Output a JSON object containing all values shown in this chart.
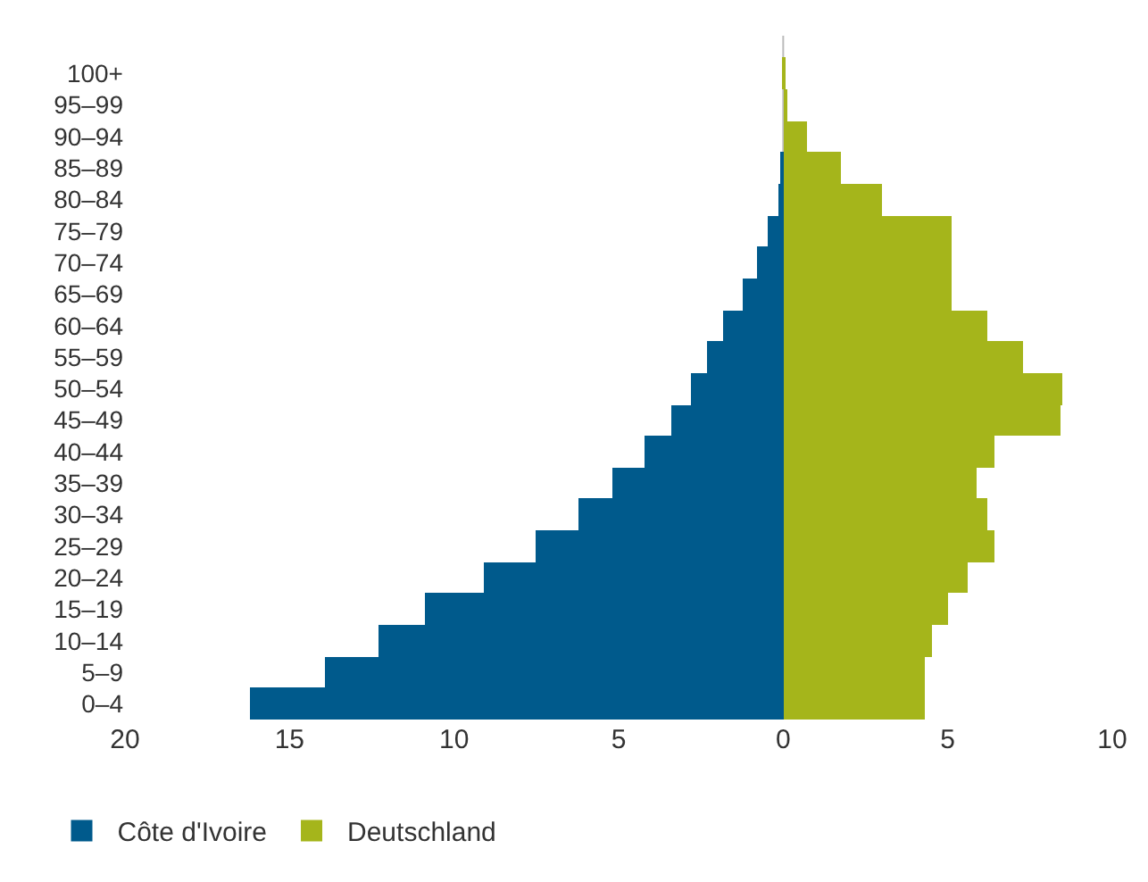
{
  "chart_data": {
    "type": "bar",
    "orientation": "horizontal",
    "categories": [
      "100+",
      "95–99",
      "90–94",
      "85–89",
      "80–84",
      "75–79",
      "70–74",
      "65–69",
      "60–64",
      "55–59",
      "50–54",
      "45–49",
      "40–44",
      "35–39",
      "30–34",
      "25–29",
      "20–24",
      "15–19",
      "10–14",
      "5–9",
      "0–4"
    ],
    "series": [
      {
        "name": "Côte d'Ivoire",
        "color": "#005a8c",
        "values": [
          0,
          0,
          0,
          -0.05,
          -0.15,
          -0.45,
          -0.8,
          -1.25,
          -1.8,
          -2.3,
          -2.8,
          -3.4,
          -4.2,
          -5.2,
          -6.2,
          -7.5,
          -9.1,
          -10.9,
          -12.3,
          -13.9,
          -16.2
        ]
      },
      {
        "name": "Deutschland",
        "color": "#a5b51b",
        "values": [
          0.02,
          0.15,
          0.75,
          1.75,
          3.0,
          5.1,
          5.1,
          5.1,
          6.2,
          7.3,
          8.5,
          8.4,
          6.4,
          5.9,
          6.2,
          6.4,
          5.6,
          5.0,
          4.5,
          4.3,
          4.3
        ]
      }
    ],
    "xlim": [
      -20,
      10
    ],
    "xticks": [
      {
        "value": -20,
        "label": "20"
      },
      {
        "value": -15,
        "label": "15"
      },
      {
        "value": -10,
        "label": "10"
      },
      {
        "value": -5,
        "label": "5"
      },
      0,
      5,
      10
    ],
    "stacked": true,
    "ref_lines": [
      {
        "axis": "x",
        "value": 0,
        "color": "#bbbbbb"
      }
    ],
    "grid": false,
    "legend": "bottom left"
  }
}
